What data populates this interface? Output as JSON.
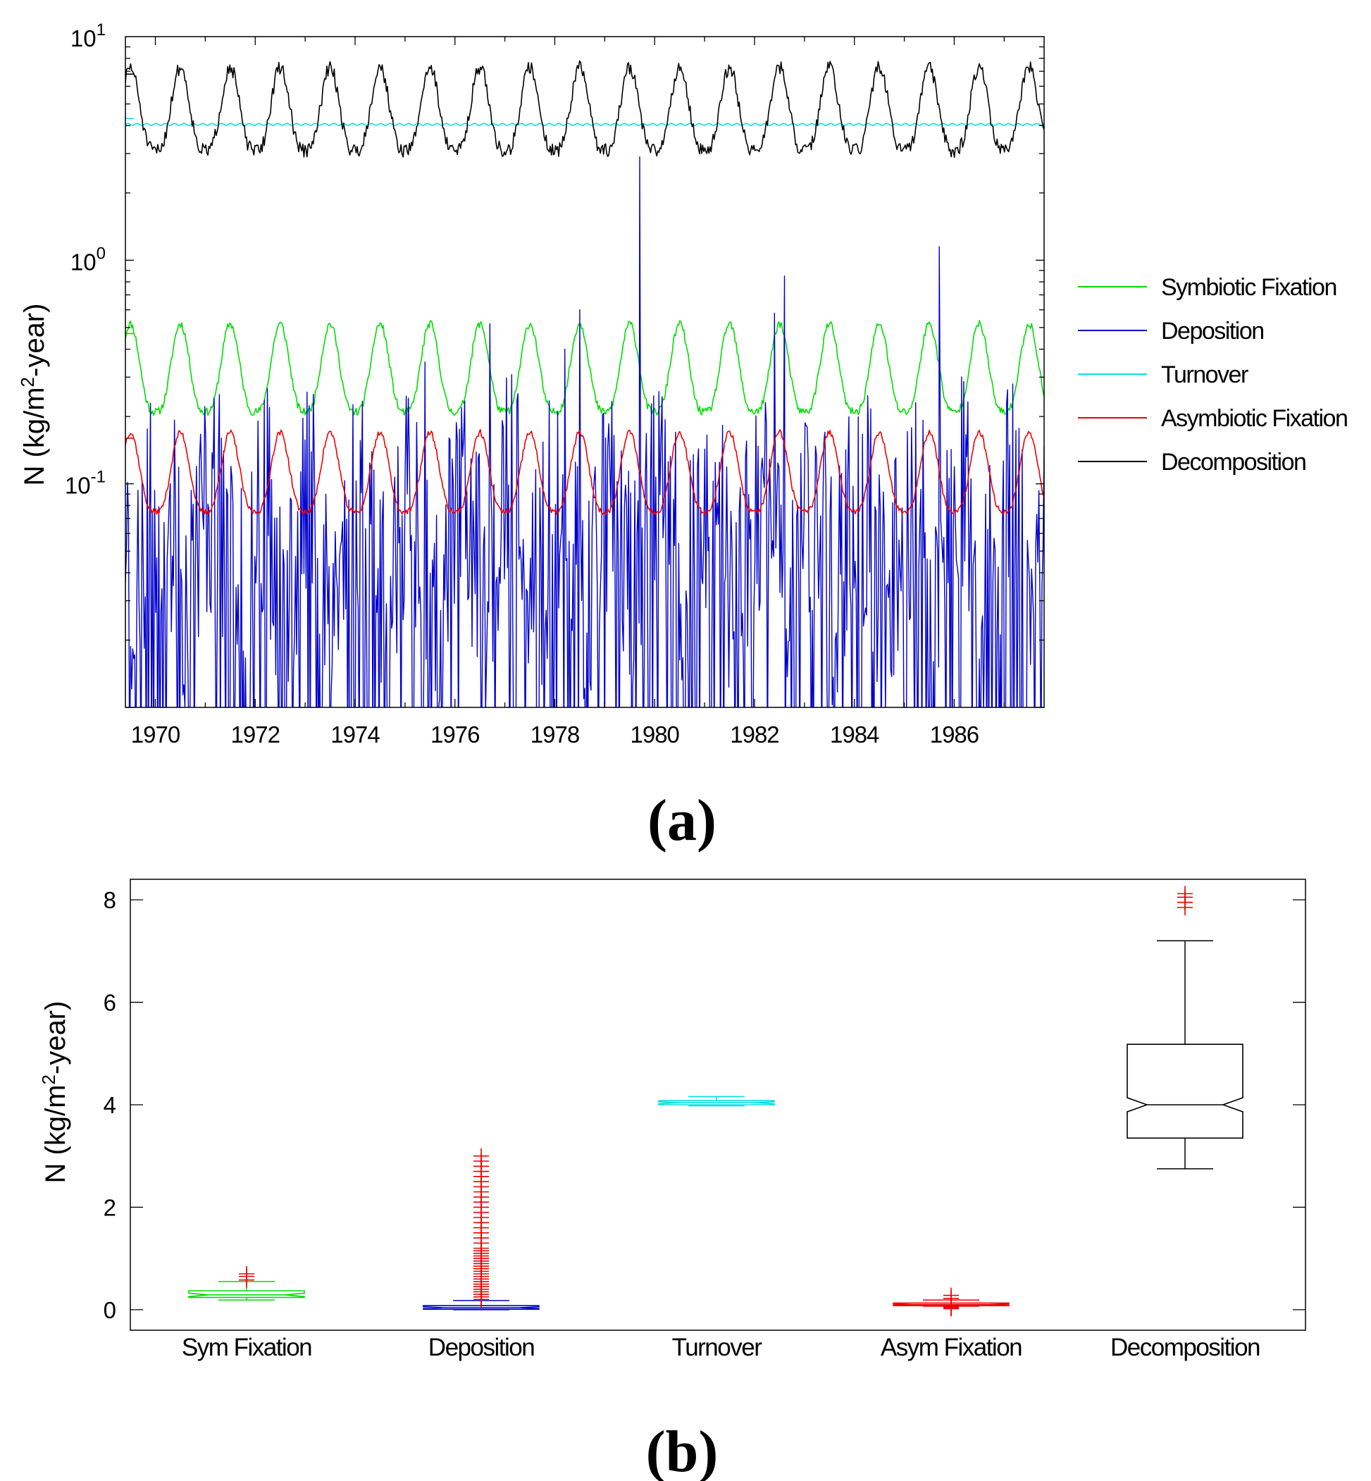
{
  "chart_data": [
    {
      "id": "a",
      "type": "line",
      "yscale": "log",
      "panel_label": "a",
      "ylabel": "N (kg/m2-year)",
      "ylabel_parts": {
        "pre": "N (kg/m",
        "sup": "2",
        "post": "-year)"
      },
      "xlim": [
        1969.4,
        1987.8
      ],
      "ylim": [
        0.01,
        10
      ],
      "xticks": [
        "1970",
        "1972",
        "1974",
        "1976",
        "1978",
        "1980",
        "1982",
        "1984",
        "1986"
      ],
      "yticks": [
        {
          "base": "10",
          "exp": "1",
          "value": 10
        },
        {
          "base": "10",
          "exp": "0",
          "value": 1
        },
        {
          "base": "10",
          "exp": "-1",
          "value": 0.1
        }
      ],
      "series": [
        {
          "name": "Symbiotic Fixation",
          "color": "#00dd00",
          "period_years": 1,
          "peak_phase": 0.1,
          "min": 0.21,
          "max": 0.52,
          "noise": 0.04,
          "start_value": 0.47,
          "seed": 11
        },
        {
          "name": "Deposition",
          "color": "#0000cc",
          "kind": "spiky",
          "base": 0.05,
          "seed": 23,
          "spikes": [
            {
              "x": 1979.7,
              "y": 2.9
            },
            {
              "x": 1985.7,
              "y": 1.15
            },
            {
              "x": 1982.6,
              "y": 0.85
            },
            {
              "x": 1982.4,
              "y": 0.58
            },
            {
              "x": 1976.7,
              "y": 0.52
            },
            {
              "x": 1978.5,
              "y": 0.6
            },
            {
              "x": 1975.4,
              "y": 0.35
            },
            {
              "x": 1978.2,
              "y": 0.4
            }
          ]
        },
        {
          "name": "Turnover",
          "color": "#00e5e5",
          "kind": "flat",
          "value": 4.05,
          "start_value": 4.3
        },
        {
          "name": "Asymbiotic Fixation",
          "color": "#ee0000",
          "period_years": 1,
          "peak_phase": 0.1,
          "min": 0.075,
          "max": 0.17,
          "noise": 0.03,
          "start_value": 0.16,
          "seed": 37
        },
        {
          "name": "Decomposition",
          "color": "#000000",
          "period_years": 1,
          "peak_phase": 0.1,
          "min": 3.1,
          "max": 7.3,
          "noise": 0.07,
          "start_value": 6.8,
          "seed": 51
        }
      ],
      "legend": [
        "Symbiotic Fixation",
        "Deposition",
        "Turnover",
        "Asymbiotic Fixation",
        "Decomposition"
      ],
      "legend_position": "right"
    },
    {
      "id": "b",
      "type": "box",
      "panel_label": "b",
      "ylabel": "N (kg/m2-year)",
      "ylabel_parts": {
        "pre": "N (kg/m",
        "sup": "2",
        "post": "-year)"
      },
      "ylim": [
        -0.4,
        8.4
      ],
      "yticks": [
        "0",
        "2",
        "4",
        "6",
        "8"
      ],
      "ytick_values": [
        0,
        2,
        4,
        6,
        8
      ],
      "categories": [
        "Sym Fixation",
        "Deposition",
        "Turnover",
        "Asym Fixation",
        "Decomposition"
      ],
      "boxes": [
        {
          "name": "Sym Fixation",
          "color": "#00dd00",
          "whisker_low": 0.19,
          "q1": 0.24,
          "median": 0.29,
          "q3": 0.37,
          "whisker_high": 0.55,
          "outliers": [
            0.58,
            0.65,
            0.7
          ]
        },
        {
          "name": "Deposition",
          "color": "#0000cc",
          "whisker_low": 0.0,
          "q1": 0.01,
          "median": 0.04,
          "q3": 0.08,
          "whisker_high": 0.18,
          "outliers": [
            0.2,
            0.25,
            0.3,
            0.35,
            0.4,
            0.45,
            0.5,
            0.55,
            0.6,
            0.65,
            0.7,
            0.75,
            0.8,
            0.85,
            0.9,
            0.95,
            1.0,
            1.05,
            1.1,
            1.15,
            1.2,
            1.3,
            1.4,
            1.5,
            1.6,
            1.7,
            1.8,
            1.9,
            2.0,
            2.1,
            2.2,
            2.3,
            2.4,
            2.5,
            2.6,
            2.7,
            2.8,
            2.9,
            3.0
          ]
        },
        {
          "name": "Turnover",
          "color": "#00dddd",
          "whisker_low": 3.98,
          "q1": 4.0,
          "median": 4.04,
          "q3": 4.08,
          "whisker_high": 4.16,
          "outliers": []
        },
        {
          "name": "Asym Fixation",
          "color": "#ee0000",
          "whisker_low": 0.07,
          "q1": 0.08,
          "median": 0.1,
          "q3": 0.13,
          "whisker_high": 0.19,
          "outliers": [
            0.02,
            0.04,
            0.05,
            0.22,
            0.28
          ]
        },
        {
          "name": "Decomposition",
          "color": "#000000",
          "whisker_low": 2.75,
          "q1": 3.35,
          "median": 4.0,
          "q3": 5.18,
          "whisker_high": 7.2,
          "outliers": [
            7.85,
            7.95,
            8.05,
            8.12
          ]
        }
      ],
      "outlier_color": "#ee0000"
    }
  ]
}
